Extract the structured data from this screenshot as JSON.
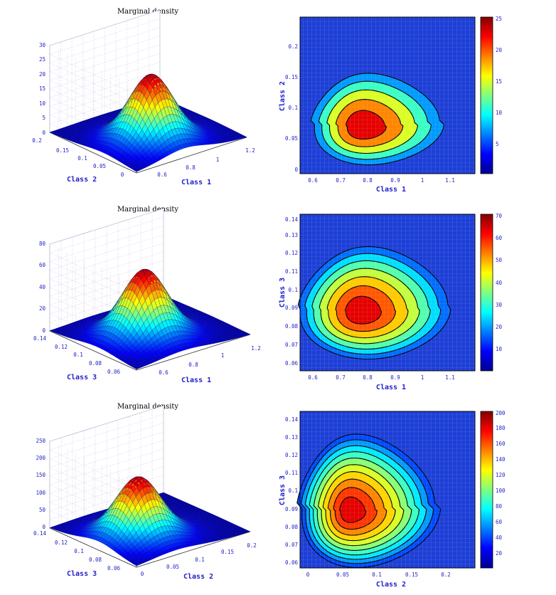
{
  "colors": {
    "axis_text": "#1e1ec8",
    "background": "#ffffff",
    "grid3d": "#ccccee",
    "contour_line": "#000000"
  },
  "chart_data": [
    {
      "type": "surface",
      "title": "Marginal density",
      "xlabel": "Class 1",
      "ylabel": "Class 2",
      "xlim": [
        0.55,
        1.2
      ],
      "ylim": [
        0,
        0.2
      ],
      "zlim": [
        0,
        30
      ],
      "x_ticks": [
        "0.6",
        "0.8",
        "1",
        "1.2"
      ],
      "y_ticks": [
        "0",
        "0.05",
        "0.1",
        "0.15",
        "0.2"
      ],
      "z_ticks": [
        "0",
        "5",
        "10",
        "15",
        "20",
        "25",
        "30"
      ],
      "peak": 23.5,
      "peak_x": 0.83,
      "peak_y": 0.075
    },
    {
      "type": "contour",
      "xlabel": "Class 1",
      "ylabel": "Class 2",
      "x_ticks": [
        "0.6",
        "0.7",
        "0.8",
        "0.9",
        "1",
        "1.1"
      ],
      "y_ticks": [
        "0",
        "0.05",
        "0.1",
        "0.15",
        "0.2"
      ],
      "colorbar_ticks": [
        "5",
        "10",
        "15",
        "20",
        "25"
      ],
      "levels": 5,
      "max": 25
    },
    {
      "type": "surface",
      "title": "Marginal density",
      "xlabel": "Class 1",
      "ylabel": "Class 3",
      "xlim": [
        0.55,
        1.2
      ],
      "ylim": [
        0.055,
        0.14
      ],
      "zlim": [
        0,
        80
      ],
      "x_ticks": [
        "0.6",
        "0.8",
        "1",
        "1.2"
      ],
      "y_ticks": [
        "0.06",
        "0.08",
        "0.1",
        "0.12",
        "0.14"
      ],
      "z_ticks": [
        "0",
        "20",
        "40",
        "60",
        "80"
      ],
      "peak": 63,
      "peak_x": 0.82,
      "peak_y": 0.093
    },
    {
      "type": "contour",
      "xlabel": "Class 1",
      "ylabel": "Class 3",
      "x_ticks": [
        "0.6",
        "0.7",
        "0.8",
        "0.9",
        "1",
        "1.1"
      ],
      "y_ticks": [
        "0.06",
        "0.07",
        "0.08",
        "0.09",
        "0.1",
        "0.11",
        "0.12",
        "0.13",
        "0.14"
      ],
      "colorbar_ticks": [
        "10",
        "20",
        "30",
        "40",
        "50",
        "60",
        "70"
      ],
      "levels": 7,
      "max": 70
    },
    {
      "type": "surface",
      "title": "Marginal density",
      "xlabel": "Class 2",
      "ylabel": "Class 3",
      "xlim": [
        0,
        0.2
      ],
      "ylim": [
        0.055,
        0.14
      ],
      "zlim": [
        0,
        250
      ],
      "x_ticks": [
        "0",
        "0.05",
        "0.1",
        "0.15",
        "0.2"
      ],
      "y_ticks": [
        "0.06",
        "0.08",
        "0.1",
        "0.12",
        "0.14"
      ],
      "z_ticks": [
        "0",
        "50",
        "100",
        "150",
        "200",
        "250"
      ],
      "peak": 175,
      "peak_x": 0.07,
      "peak_y": 0.092
    },
    {
      "type": "contour",
      "xlabel": "Class 2",
      "ylabel": "Class 3",
      "x_ticks": [
        "0",
        "0.05",
        "0.1",
        "0.15",
        "0.2"
      ],
      "y_ticks": [
        "0.06",
        "0.07",
        "0.08",
        "0.09",
        "0.1",
        "0.11",
        "0.12",
        "0.13",
        "0.14"
      ],
      "colorbar_ticks": [
        "20",
        "40",
        "60",
        "80",
        "100",
        "120",
        "140",
        "160",
        "180",
        "200"
      ],
      "levels": 10,
      "max": 200
    }
  ]
}
